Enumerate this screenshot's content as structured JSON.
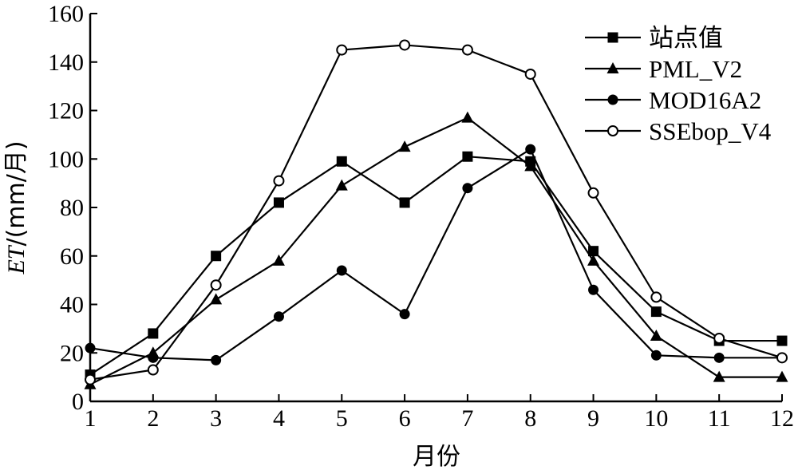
{
  "chart_data": {
    "type": "line",
    "title": "",
    "xlabel": "月份",
    "ylabel": {
      "italic": "ET",
      "rest": "/(mm/月)"
    },
    "x": [
      1,
      2,
      3,
      4,
      5,
      6,
      7,
      8,
      9,
      10,
      11,
      12
    ],
    "xticks": [
      "1",
      "2",
      "3",
      "4",
      "5",
      "6",
      "7",
      "8",
      "9",
      "10",
      "11",
      "12"
    ],
    "xlim": [
      1,
      12
    ],
    "ylim": [
      0,
      160
    ],
    "yticks": [
      0,
      20,
      40,
      60,
      80,
      100,
      120,
      140,
      160
    ],
    "grid": false,
    "legend_position": "top-right",
    "series": [
      {
        "name": "站点值",
        "marker": "filled-square",
        "values": [
          11,
          28,
          60,
          82,
          99,
          82,
          101,
          99,
          62,
          37,
          25,
          25
        ]
      },
      {
        "name": "PML_V2",
        "marker": "filled-triangle",
        "values": [
          7,
          20,
          42,
          58,
          89,
          105,
          117,
          97,
          58,
          27,
          10,
          10
        ]
      },
      {
        "name": "MOD16A2",
        "marker": "filled-circle",
        "values": [
          22,
          18,
          17,
          35,
          54,
          36,
          88,
          104,
          46,
          19,
          18,
          18
        ]
      },
      {
        "name": "SSEbop_V4",
        "marker": "open-circle",
        "values": [
          9,
          13,
          48,
          91,
          145,
          147,
          145,
          135,
          86,
          43,
          26,
          18
        ]
      }
    ]
  }
}
